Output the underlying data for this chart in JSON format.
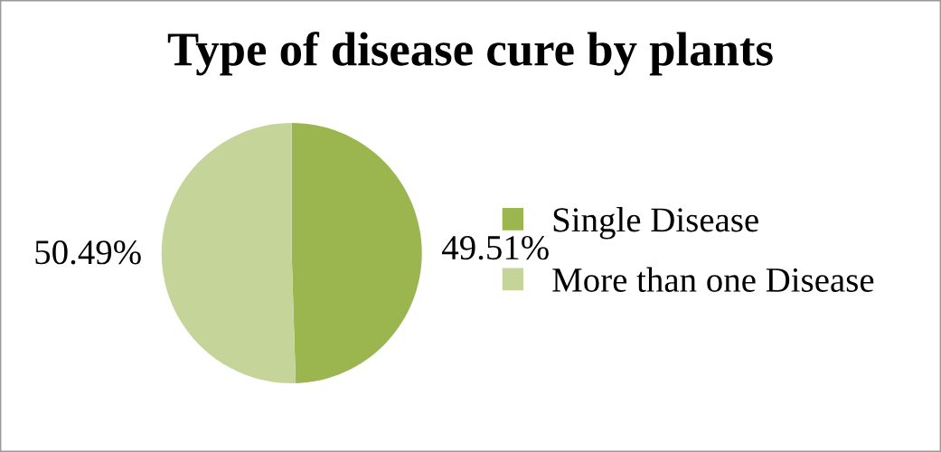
{
  "chart_data": {
    "type": "pie",
    "title": "Type of disease cure by plants",
    "categories": [
      "Single Disease",
      "More than one Disease"
    ],
    "values": [
      49.51,
      50.49
    ],
    "value_labels": [
      "49.51%",
      "50.49%"
    ],
    "colors": [
      "#9bb54f",
      "#c5d59a"
    ],
    "legend": "right"
  }
}
